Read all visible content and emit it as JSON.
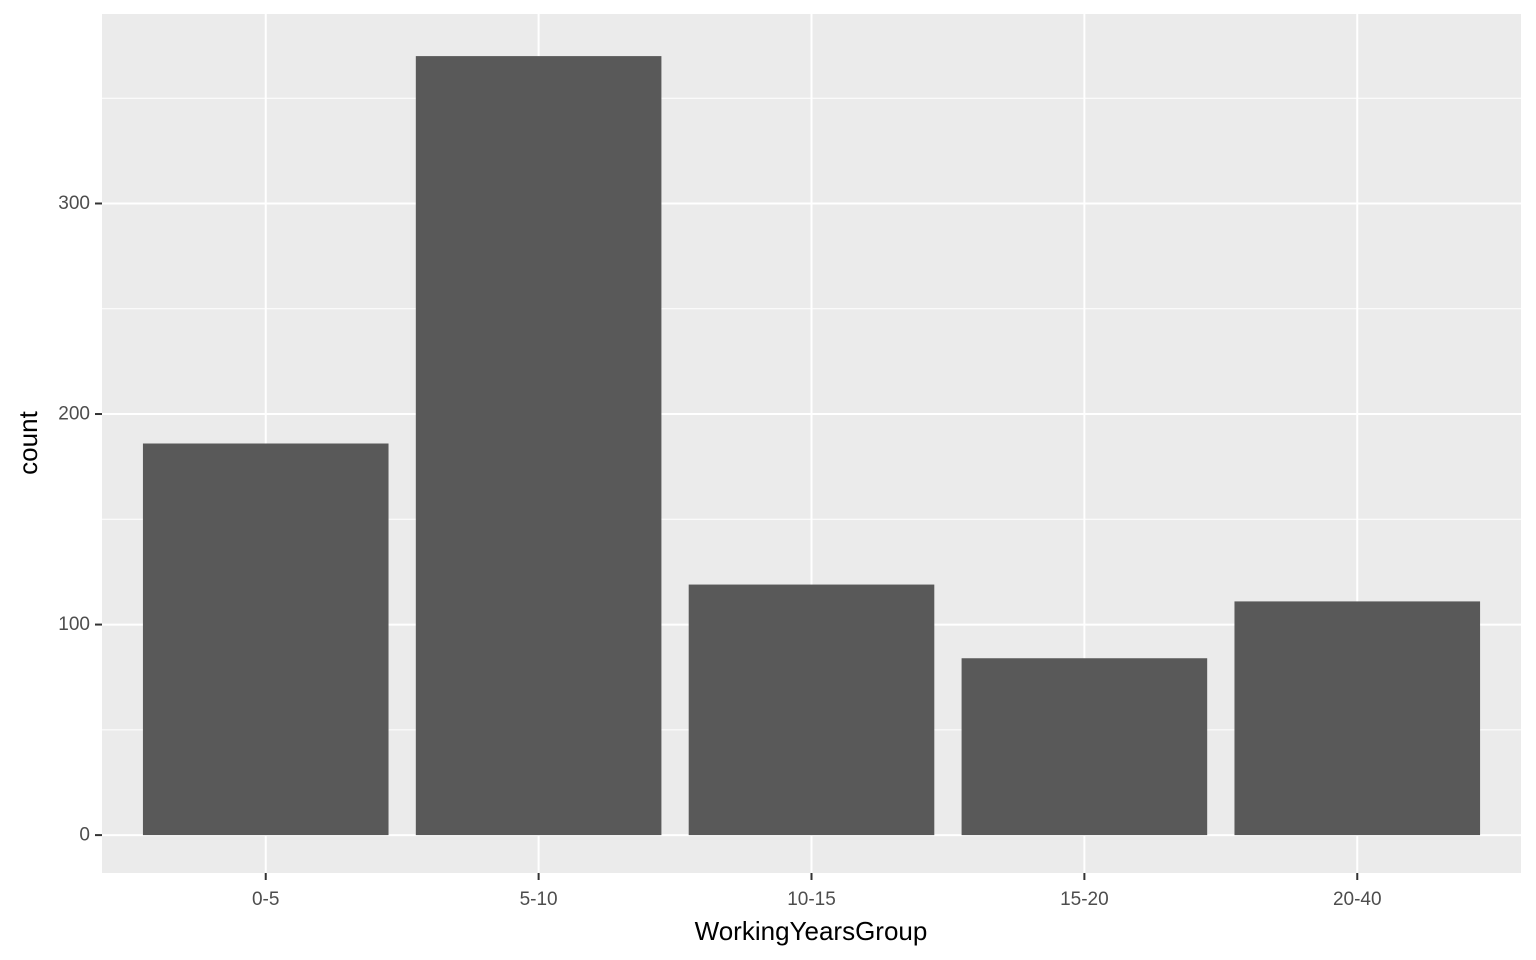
{
  "chart_data": {
    "type": "bar",
    "categories": [
      "0-5",
      "5-10",
      "10-15",
      "15-20",
      "20-40"
    ],
    "values": [
      186,
      370,
      119,
      84,
      111
    ],
    "xlabel": "WorkingYearsGroup",
    "ylabel": "count",
    "ylim": [
      -18,
      390
    ],
    "yticks": [
      0,
      100,
      200,
      300
    ],
    "ytick_labels": [
      "0",
      "100",
      "200",
      "300"
    ],
    "grid": true,
    "legend": "none",
    "colors": {
      "panel_background": "#ebebeb",
      "grid_line": "#ffffff",
      "bar_fill": "#595959",
      "tick_label": "#4d4d4d",
      "axis_title": "#000000"
    }
  }
}
